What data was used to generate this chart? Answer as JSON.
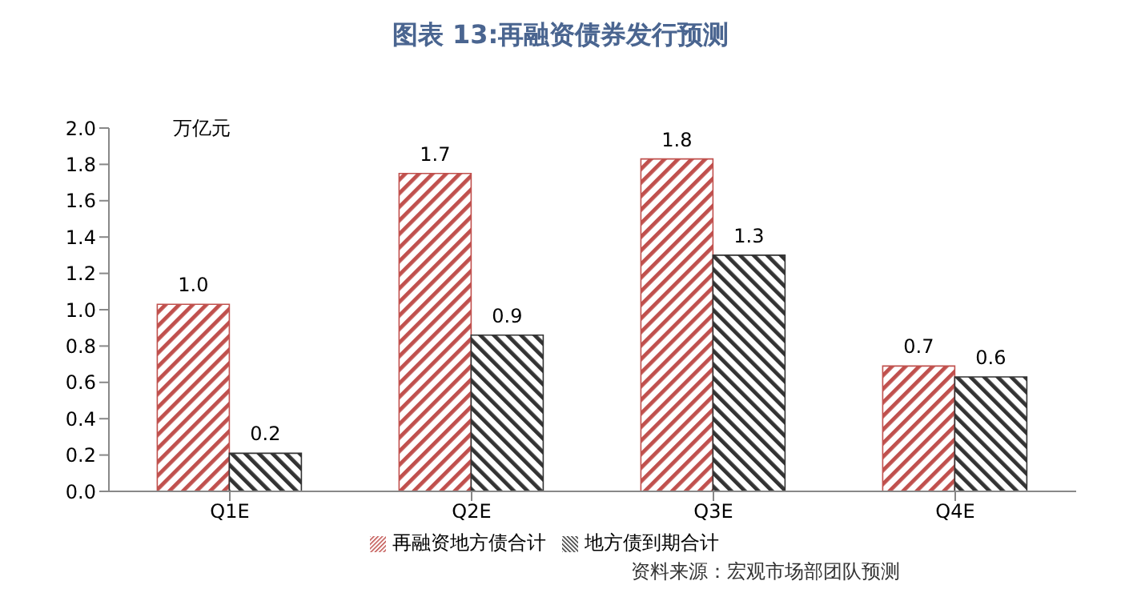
{
  "chart_data": {
    "type": "bar",
    "title": "图表 13:再融资债券发行预测",
    "ylabel": "万亿元",
    "categories": [
      "Q1E",
      "Q2E",
      "Q3E",
      "Q4E"
    ],
    "series": [
      {
        "name": "再融资地方债合计",
        "color": "#c0504d",
        "values": [
          1.03,
          1.75,
          1.83,
          0.69
        ],
        "value_labels": [
          "1.0",
          "1.7",
          "1.8",
          "0.7"
        ]
      },
      {
        "name": "地方债到期合计",
        "color": "#333333",
        "values": [
          0.21,
          0.86,
          1.3,
          0.63
        ],
        "value_labels": [
          "0.2",
          "0.9",
          "1.3",
          "0.6"
        ]
      }
    ],
    "ylim": [
      0,
      2
    ],
    "yticks": [
      {
        "value": 0,
        "label": "0.0"
      },
      {
        "value": 0.2,
        "label": "0.2"
      },
      {
        "value": 0.4,
        "label": "0.4"
      },
      {
        "value": 0.6,
        "label": "0.6"
      },
      {
        "value": 0.8,
        "label": "0.8"
      },
      {
        "value": 1,
        "label": "1.0"
      },
      {
        "value": 1.2,
        "label": "1.2"
      },
      {
        "value": 1.4,
        "label": "1.4"
      },
      {
        "value": 1.6,
        "label": "1.6"
      },
      {
        "value": 1.8,
        "label": "1.8"
      },
      {
        "value": 2,
        "label": "2.0"
      }
    ],
    "grid": false,
    "legend": "bottom",
    "annotations": [
      "资料来源：宏观市场部团队预测"
    ]
  }
}
